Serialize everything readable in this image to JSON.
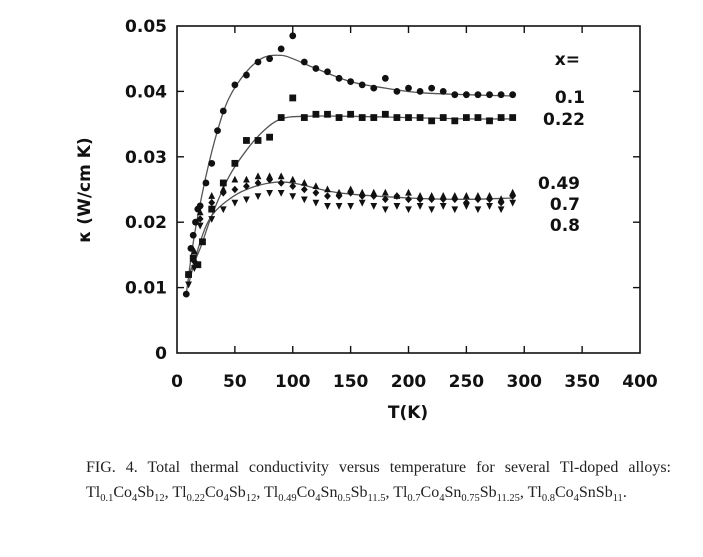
{
  "chart_data": {
    "type": "scatter",
    "xlabel": "T(K)",
    "ylabel": "κ (W/cm K)",
    "xlim": [
      0,
      400
    ],
    "ylim": [
      0,
      0.05
    ],
    "xticks": [
      "0",
      "50",
      "100",
      "150",
      "200",
      "250",
      "300",
      "350",
      "400"
    ],
    "yticks": [
      "0",
      "0.01",
      "0.02",
      "0.03",
      "0.04",
      "0.05"
    ],
    "grid": false,
    "legend_title": "x=",
    "series": [
      {
        "name": "0.1",
        "marker": "circle",
        "x": [
          8,
          10,
          12,
          14,
          16,
          18,
          20,
          25,
          30,
          35,
          40,
          50,
          60,
          70,
          80,
          90,
          100,
          110,
          120,
          130,
          140,
          150,
          160,
          170,
          180,
          190,
          200,
          210,
          220,
          230,
          240,
          250,
          260,
          270,
          280,
          290
        ],
        "y": [
          0.009,
          0.012,
          0.016,
          0.018,
          0.02,
          0.022,
          0.0225,
          0.026,
          0.029,
          0.034,
          0.037,
          0.041,
          0.0425,
          0.0445,
          0.045,
          0.0465,
          0.0485,
          0.0445,
          0.0435,
          0.043,
          0.042,
          0.0415,
          0.041,
          0.0405,
          0.042,
          0.04,
          0.0405,
          0.04,
          0.0405,
          0.04,
          0.0395,
          0.0395,
          0.0395,
          0.0395,
          0.0395,
          0.0395
        ],
        "fit_x": [
          8,
          15,
          25,
          35,
          45,
          60,
          75,
          90,
          100,
          120,
          150,
          180,
          210,
          250,
          290
        ],
        "fit_y": [
          0.009,
          0.018,
          0.027,
          0.034,
          0.039,
          0.043,
          0.0452,
          0.0455,
          0.045,
          0.0435,
          0.0415,
          0.0405,
          0.0398,
          0.0395,
          0.0393
        ]
      },
      {
        "name": "0.22",
        "marker": "square",
        "x": [
          10,
          14,
          18,
          22,
          30,
          40,
          50,
          60,
          70,
          80,
          90,
          100,
          110,
          120,
          130,
          140,
          150,
          160,
          170,
          180,
          190,
          200,
          210,
          220,
          230,
          240,
          250,
          260,
          270,
          280,
          290
        ],
        "y": [
          0.012,
          0.0145,
          0.0135,
          0.017,
          0.022,
          0.026,
          0.029,
          0.0325,
          0.0325,
          0.033,
          0.036,
          0.039,
          0.036,
          0.0365,
          0.0365,
          0.036,
          0.0365,
          0.036,
          0.036,
          0.0365,
          0.036,
          0.036,
          0.036,
          0.0355,
          0.036,
          0.0355,
          0.036,
          0.036,
          0.0355,
          0.036,
          0.036
        ],
        "fit_x": [
          10,
          20,
          30,
          45,
          60,
          75,
          90,
          110,
          150,
          200,
          250,
          290
        ],
        "fit_y": [
          0.012,
          0.016,
          0.021,
          0.027,
          0.031,
          0.034,
          0.0358,
          0.0362,
          0.0362,
          0.036,
          0.0358,
          0.0358
        ]
      },
      {
        "name": "0.49",
        "marker": "triangle-up",
        "x": [
          15,
          20,
          30,
          40,
          50,
          60,
          70,
          80,
          90,
          100,
          110,
          120,
          130,
          140,
          150,
          160,
          170,
          180,
          190,
          200,
          210,
          220,
          230,
          240,
          250,
          260,
          270,
          280,
          290
        ],
        "y": [
          0.0155,
          0.0215,
          0.024,
          0.025,
          0.0265,
          0.0265,
          0.027,
          0.027,
          0.027,
          0.0265,
          0.026,
          0.0255,
          0.025,
          0.0245,
          0.025,
          0.0245,
          0.0245,
          0.0245,
          0.024,
          0.0245,
          0.024,
          0.024,
          0.024,
          0.024,
          0.024,
          0.024,
          0.024,
          0.0235,
          0.0245
        ]
      },
      {
        "name": "0.7",
        "marker": "diamond",
        "x": [
          15,
          20,
          30,
          40,
          50,
          60,
          70,
          80,
          90,
          100,
          110,
          120,
          130,
          140,
          150,
          160,
          170,
          180,
          190,
          200,
          210,
          220,
          230,
          240,
          250,
          260,
          270,
          280,
          290
        ],
        "y": [
          0.014,
          0.0205,
          0.023,
          0.0245,
          0.025,
          0.0255,
          0.026,
          0.0265,
          0.026,
          0.0255,
          0.025,
          0.0245,
          0.024,
          0.024,
          0.0245,
          0.024,
          0.024,
          0.0235,
          0.024,
          0.0235,
          0.0235,
          0.0235,
          0.0235,
          0.0235,
          0.023,
          0.0235,
          0.0235,
          0.023,
          0.024
        ]
      },
      {
        "name": "0.8",
        "marker": "triangle-down",
        "x": [
          10,
          15,
          20,
          30,
          40,
          50,
          60,
          70,
          80,
          90,
          100,
          110,
          120,
          130,
          140,
          150,
          160,
          170,
          180,
          190,
          200,
          210,
          220,
          230,
          240,
          250,
          260,
          270,
          280,
          290
        ],
        "y": [
          0.0105,
          0.013,
          0.0195,
          0.0205,
          0.022,
          0.023,
          0.0235,
          0.024,
          0.0245,
          0.0245,
          0.024,
          0.0235,
          0.023,
          0.0225,
          0.0225,
          0.0225,
          0.023,
          0.0225,
          0.022,
          0.0225,
          0.022,
          0.0225,
          0.022,
          0.0225,
          0.022,
          0.0225,
          0.022,
          0.0225,
          0.022,
          0.023
        ],
        "fit_x": [
          10,
          20,
          30,
          45,
          60,
          80,
          100,
          140,
          200,
          250,
          290
        ],
        "fit_y": [
          0.0105,
          0.017,
          0.021,
          0.0235,
          0.025,
          0.026,
          0.026,
          0.0245,
          0.0237,
          0.0235,
          0.0237
        ]
      }
    ]
  },
  "caption": {
    "label": "FIG. 4.",
    "text": "Total thermal conductivity versus temperature for several Tl-doped alloys:",
    "formulas": [
      [
        {
          "t": "Tl"
        },
        {
          "s": "0.1"
        },
        {
          "t": "Co"
        },
        {
          "s": "4"
        },
        {
          "t": "Sb"
        },
        {
          "s": "12"
        }
      ],
      [
        {
          "t": "Tl"
        },
        {
          "s": "0.22"
        },
        {
          "t": "Co"
        },
        {
          "s": "4"
        },
        {
          "t": "Sb"
        },
        {
          "s": "12"
        }
      ],
      [
        {
          "t": "Tl"
        },
        {
          "s": "0.49"
        },
        {
          "t": "Co"
        },
        {
          "s": "4"
        },
        {
          "t": "Sn"
        },
        {
          "s": "0.5"
        },
        {
          "t": "Sb"
        },
        {
          "s": "11.5"
        }
      ],
      [
        {
          "t": "Tl"
        },
        {
          "s": "0.7"
        },
        {
          "t": "Co"
        },
        {
          "s": "4"
        },
        {
          "t": "Sn"
        },
        {
          "s": "0.75"
        },
        {
          "t": "Sb"
        },
        {
          "s": "11.25"
        }
      ],
      [
        {
          "t": "Tl"
        },
        {
          "s": "0.8"
        },
        {
          "t": "Co"
        },
        {
          "s": "4"
        },
        {
          "t": "SnSb"
        },
        {
          "s": "11"
        }
      ]
    ]
  }
}
